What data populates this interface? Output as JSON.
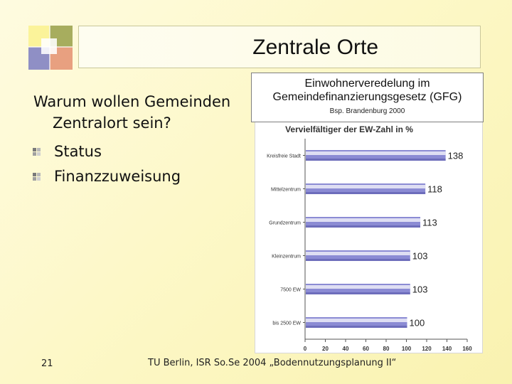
{
  "slide": {
    "title": "Zentrale Orte",
    "question_line1": "Warum wollen Gemeinden",
    "question_line2": "Zentralort sein?",
    "bullets": [
      "Status",
      "Finanzzuweisung"
    ],
    "slide_number": "21",
    "footer": "TU Berlin, ISR So.Se 2004 „Bodennutzungsplanung II“"
  },
  "info_box": {
    "line1": "Einwohnerveredelung im",
    "line2": "Gemeindefinanzierungsgesetz (GFG)",
    "line3": "Bsp. Brandenburg 2000"
  },
  "colors": {
    "bar_main": "#8b8bd4",
    "bar_light": "#ececf8",
    "bar_dark": "#5555a5"
  },
  "chart_data": {
    "type": "bar",
    "orientation": "horizontal",
    "title": "Vervielfältiger der EW-Zahl in %",
    "categories": [
      "Kreisfreie Stadt",
      "Mittelzentrum",
      "Grundzentrum",
      "Kleinzentrum",
      "7500 EW",
      "bis 2500 EW"
    ],
    "values": [
      138,
      118,
      113,
      103,
      103,
      100
    ],
    "xlim": [
      0,
      160
    ],
    "xticks": [
      "0",
      "20",
      "40",
      "60",
      "80",
      "100",
      "120",
      "140",
      "160"
    ],
    "grid": false,
    "legend": "none"
  }
}
